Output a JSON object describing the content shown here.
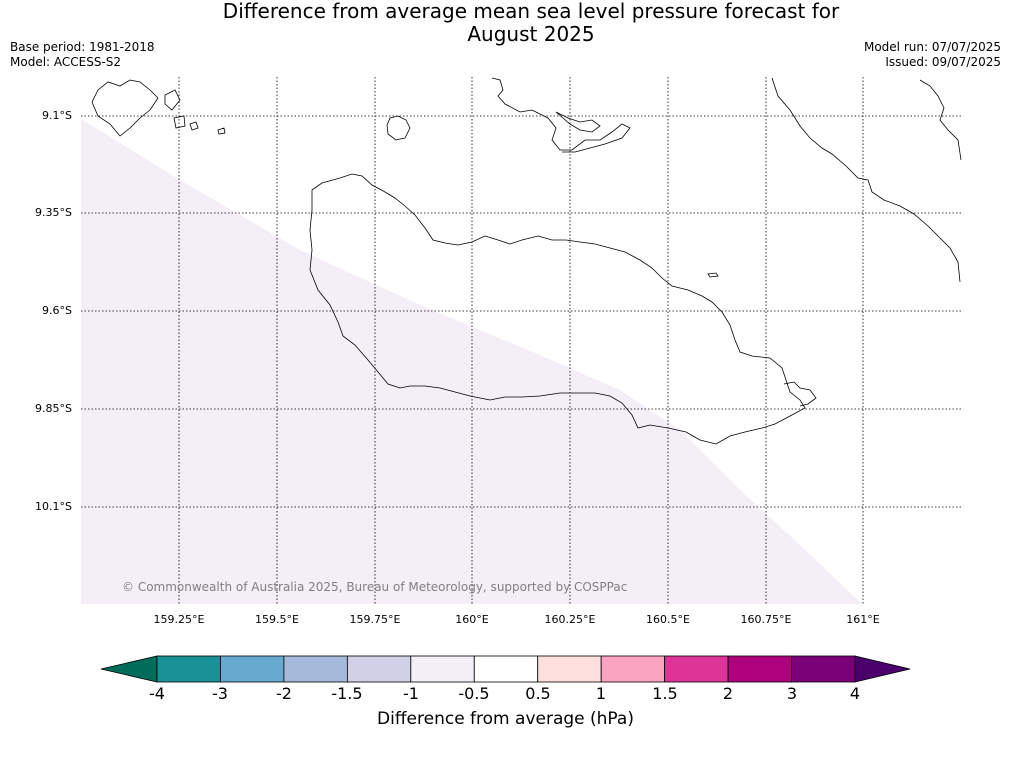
{
  "title": {
    "line1": "Difference from average mean sea level pressure forecast for",
    "line2": "August 2025"
  },
  "meta_left": {
    "base_period": "Base period: 1981-2018",
    "model": "Model: ACCESS-S2"
  },
  "meta_right": {
    "model_run": "Model run: 07/07/2025",
    "issued": "Issued: 09/07/2025"
  },
  "copyright": "© Commonwealth of Australia 2025, Bureau of Meteorology, supported by COSPPac",
  "latitude_labels": [
    "9.1°S",
    "9.35°S",
    "9.6°S",
    "9.85°S",
    "10.1°S"
  ],
  "longitude_labels": [
    "159.25°E",
    "159.5°E",
    "159.75°E",
    "160°E",
    "160.25°E",
    "160.5°E",
    "160.75°E",
    "161°E"
  ],
  "colorbar": {
    "title": "Difference from average (hPa)",
    "tick_labels": [
      "-4",
      "-3",
      "-2",
      "-1.5",
      "-1",
      "-0.5",
      "0.5",
      "1",
      "1.5",
      "2",
      "3",
      "4"
    ],
    "colors": [
      "#1a9196",
      "#67a9cf",
      "#a6b9db",
      "#d0d1e6",
      "#f4eef7",
      "#ffffff",
      "#fde0dd",
      "#f9a3c0",
      "#dd3497",
      "#ae017e",
      "#7a0177"
    ],
    "low_extend_color": "#016c59",
    "high_extend_color": "#49006a"
  },
  "map": {
    "shaded_category": "-1 to -0.5",
    "shaded_color": "#f4eef7"
  }
}
